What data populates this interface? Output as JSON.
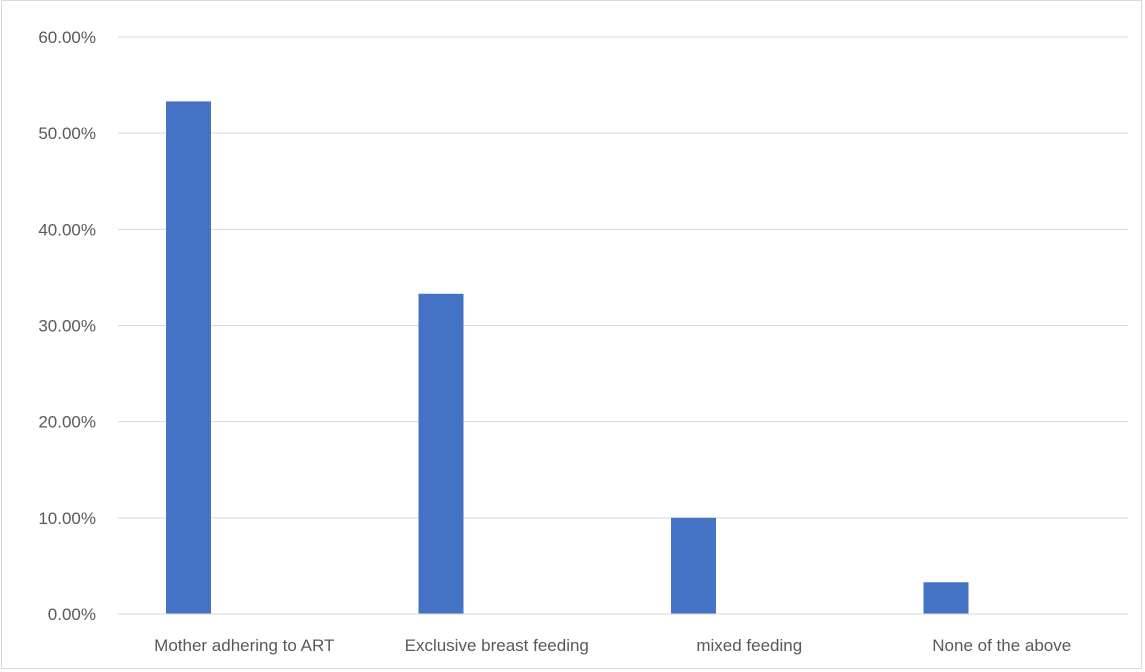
{
  "chart_data": {
    "type": "bar",
    "title_fragment": "",
    "categories": [
      "Mother adhering to ART",
      "Exclusive breast feeding",
      "mixed feeding",
      "None of the above"
    ],
    "series": [
      {
        "values": [
          53.3,
          33.3,
          10.0,
          3.3
        ],
        "color": "#4472c4"
      }
    ],
    "ylim": [
      0,
      60
    ],
    "yticks": [
      0,
      10,
      20,
      30,
      40,
      50,
      60
    ],
    "ytick_labels": [
      "0.00%",
      "10.00%",
      "20.00%",
      "30.00%",
      "40.00%",
      "50.00%",
      "60.00%"
    ],
    "grid": true,
    "legend": "none",
    "xlabel": "",
    "ylabel": ""
  }
}
